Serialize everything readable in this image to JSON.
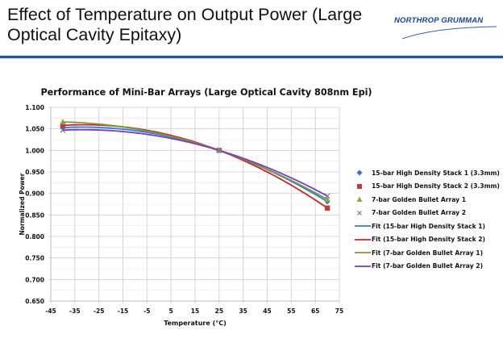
{
  "slide": {
    "title": "Effect of Temperature on Output Power (Large Optical Cavity Epitaxy)",
    "logo_text": "NORTHROP GRUMMAN",
    "accent_color": "#1b5aa6"
  },
  "chart_data": {
    "type": "scatter",
    "title": "Performance of Mini-Bar Arrays (Large Optical Cavity 808nm Epi)",
    "xlabel": "Temperature (°C)",
    "ylabel": "Normalized Power",
    "xlim": [
      -45,
      75
    ],
    "ylim": [
      0.65,
      1.1
    ],
    "xticks": [
      -45,
      -35,
      -25,
      -15,
      -5,
      5,
      15,
      25,
      35,
      45,
      55,
      65,
      75
    ],
    "xtick_labels": [
      "-45",
      "-35",
      "-25",
      "-15",
      "-5",
      "5",
      "15",
      "25",
      "35",
      "45",
      "55",
      "65",
      "75"
    ],
    "yticks": [
      0.65,
      0.7,
      0.75,
      0.8,
      0.85,
      0.9,
      0.95,
      1.0,
      1.05,
      1.1
    ],
    "ytick_labels": [
      "0.650",
      "0.700",
      "0.750",
      "0.800",
      "0.850",
      "0.900",
      "0.950",
      "1.000",
      "1.050",
      "1.100"
    ],
    "grid": true,
    "legend_position": "right",
    "series": [
      {
        "name": "15-bar High Density Stack 1 (3.3mm)",
        "marker": "diamond",
        "color": "#3a6fc4",
        "x": [
          -40,
          25,
          70
        ],
        "y": [
          1.053,
          1.0,
          0.881
        ]
      },
      {
        "name": "15-bar High Density Stack 2 (3.3mm)",
        "marker": "square",
        "color": "#c43a3a",
        "x": [
          -40,
          25,
          70
        ],
        "y": [
          1.058,
          1.0,
          0.866
        ]
      },
      {
        "name": "7-bar Golden Bullet Array 1",
        "marker": "triangle",
        "color": "#8aa84a",
        "x": [
          -40,
          25,
          70
        ],
        "y": [
          1.066,
          1.0,
          0.886
        ]
      },
      {
        "name": "7-bar Golden Bullet Array 2",
        "marker": "x",
        "color": "#7a6aa8",
        "x": [
          -40,
          25,
          70
        ],
        "y": [
          1.047,
          1.0,
          0.894
        ]
      }
    ],
    "fits": [
      {
        "name": "Fit (15-bar High Density Stack 1)",
        "type": "polynomial-2",
        "color": "#2a7fd4",
        "of_series": 0
      },
      {
        "name": "Fit (15-bar High Density Stack 2)",
        "type": "polynomial-2",
        "color": "#d42020",
        "of_series": 1
      },
      {
        "name": "Fit (7-bar Golden Bullet Array 1)",
        "type": "polynomial-2",
        "color": "#7a9a3a",
        "of_series": 2
      },
      {
        "name": "Fit (7-bar Golden Bullet Array 2)",
        "type": "polynomial-2",
        "color": "#7a3ac4",
        "of_series": 3
      }
    ]
  }
}
